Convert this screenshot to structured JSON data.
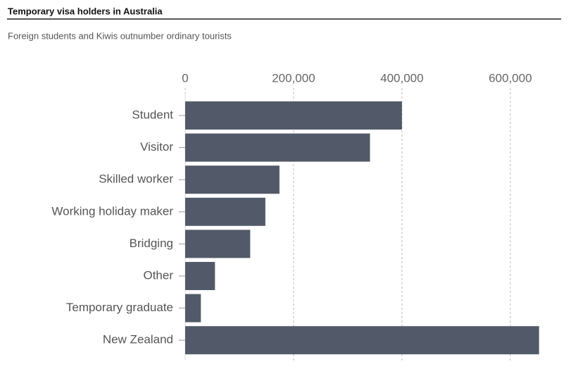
{
  "chart_data": {
    "type": "hbar",
    "title": "Temporary visa holders in Australia",
    "subtitle": "Foreign students and Kiwis outnumber ordinary tourists",
    "categories": [
      "Student",
      "Visitor",
      "Skilled worker",
      "Working holiday maker",
      "Bridging",
      "Other",
      "Temporary graduate",
      "New Zealand"
    ],
    "values": [
      400000,
      341000,
      174000,
      148000,
      120000,
      55000,
      29000,
      653000
    ],
    "color": "#525a69",
    "xlim": [
      0,
      660000
    ],
    "xticks": [
      0,
      {
        "value": 200000,
        "label": "200,000"
      },
      {
        "value": 400000,
        "label": "400,000"
      },
      {
        "value": 600000,
        "label": "600,000"
      }
    ],
    "grid": true
  }
}
